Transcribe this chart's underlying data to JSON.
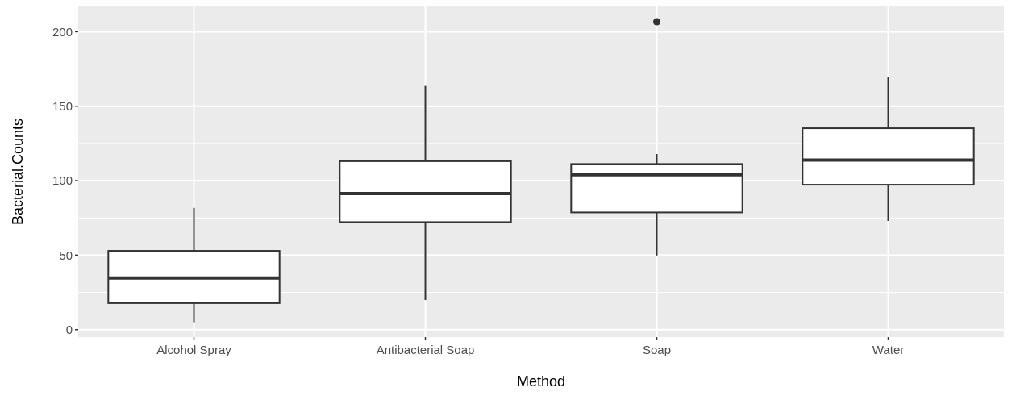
{
  "chart_data": {
    "type": "box",
    "xlabel": "Method",
    "ylabel": "Bacterial.Counts",
    "categories": [
      "Alcohol Spray",
      "Antibacterial Soap",
      "Soap",
      "Water"
    ],
    "boxes": [
      {
        "low": 5,
        "q1": 17.8,
        "median": 34.7,
        "q3": 52.9,
        "high": 81.7
      },
      {
        "low": 19.9,
        "q1": 72.2,
        "median": 91.4,
        "q3": 113.1,
        "high": 163.6
      },
      {
        "low": 49.8,
        "q1": 78.7,
        "median": 104,
        "q3": 111.2,
        "high": 117.9,
        "outliers": [
          206.7
        ]
      },
      {
        "low": 73,
        "q1": 97.3,
        "median": 113.8,
        "q3": 135.2,
        "high": 169.4
      }
    ],
    "ylim": [
      -5,
      217
    ],
    "yticks": [
      0,
      50,
      100,
      150,
      200
    ],
    "grid": true
  }
}
